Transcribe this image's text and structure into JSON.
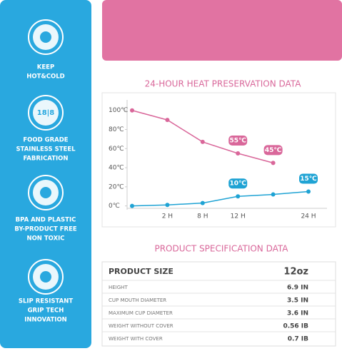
{
  "sidebar": {
    "features": [
      {
        "label": [
          "KEEP",
          "HOT&COLD"
        ]
      },
      {
        "icon_text": "18|8",
        "label": [
          "FOOD GRADE",
          "STAINLESS STEEL",
          "FABRICATION"
        ]
      },
      {
        "label": [
          "BPA AND PLASTIC",
          "BY-PRODUCT FREE",
          "NON TOXIC"
        ]
      },
      {
        "label": [
          "SLIP RESISTANT",
          "GRIP TECH",
          "INNOVATION"
        ]
      }
    ]
  },
  "chart_data": {
    "type": "line",
    "title": "24-HOUR HEAT PRESERVATION DATA",
    "categories": [
      null,
      "2 H",
      "8 H",
      "12 H",
      null,
      "24 H"
    ],
    "series": [
      {
        "color": "#d9679a",
        "values": [
          100,
          90,
          67,
          55,
          45,
          null
        ],
        "value_labels": [
          null,
          null,
          null,
          "55℃",
          "45℃",
          null
        ]
      },
      {
        "color": "#1fa3d4",
        "values": [
          0,
          1,
          3,
          10,
          12,
          15
        ],
        "value_labels": [
          null,
          null,
          null,
          "10℃",
          null,
          "15℃"
        ]
      }
    ],
    "ylim": [
      -7,
      111
    ],
    "yticks": [
      {
        "value": 0,
        "label": "0℃"
      },
      {
        "value": 20,
        "label": "20℃"
      },
      {
        "value": 40,
        "label": "40℃"
      },
      {
        "value": 60,
        "label": "60℃"
      },
      {
        "value": 80,
        "label": "80℃"
      },
      {
        "value": 100,
        "label": "100℃"
      }
    ],
    "grid": false
  },
  "spec": {
    "title": "PRODUCT SPECIFICATION DATA",
    "header": [
      "PRODUCT SIZE",
      "12oz"
    ],
    "rows": [
      [
        "HEIGHT",
        "6.9 IN"
      ],
      [
        "CUP MOUTH DIAMETER",
        "3.5 IN"
      ],
      [
        "MAXIMUM CUP DIAMETER",
        "3.6 IN"
      ],
      [
        "WEIGHT WITHOUT COVER",
        "0.56 IB"
      ],
      [
        "WEIGHT WITH COVER",
        "0.7 IB"
      ]
    ]
  }
}
